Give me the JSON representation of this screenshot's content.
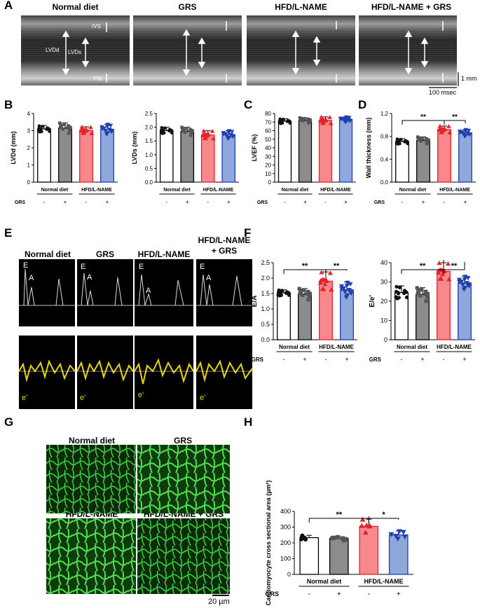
{
  "panels": {
    "A": "A",
    "B": "B",
    "C": "C",
    "D": "D",
    "E": "E",
    "F": "F",
    "G": "G",
    "H": "H"
  },
  "conditions": [
    "Normal diet",
    "GRS",
    "HFD/L-NAME",
    "HFD/L-NAME + GRS"
  ],
  "conditions_e": [
    "Normal diet",
    "GRS",
    "HFD/L-NAME",
    "HFD/L-NAME\n+ GRS"
  ],
  "mmode": {
    "ivs": "IVS",
    "lvdd": "LVDd",
    "lvds": "LVDs",
    "pw": "PW",
    "scale_v": "1 mm",
    "scale_h": "100 msec"
  },
  "doppler": {
    "e": "E",
    "a": "A",
    "eprime": "e'"
  },
  "histo": {
    "scale": "20 µm"
  },
  "groups": {
    "normal": "Normal diet",
    "hfd": "HFD/L-NAME",
    "grs_row": "GRS",
    "minus": "-",
    "plus": "+"
  },
  "colors": {
    "nd": "#ffffff",
    "grs": "#8c8c8c",
    "hfd": "#f7888c",
    "hfdgrs": "#8fa8dc",
    "hfd_marker": "#e8202a",
    "hfdgrs_marker": "#1f3fb0",
    "grs_marker": "#555555",
    "histo": "#3dcc3d",
    "tissue": "#0a2a0a",
    "doppler": "#e8d400"
  },
  "chart_data": [
    {
      "id": "lvdd",
      "type": "bar",
      "ylabel": "LVDd (mm)",
      "ylim": [
        0,
        4
      ],
      "yticks": [
        0,
        1,
        2,
        3,
        4
      ],
      "values": [
        3.1,
        3.15,
        3.02,
        3.08
      ],
      "sd": [
        0.2,
        0.3,
        0.2,
        0.3
      ]
    },
    {
      "id": "lvds",
      "type": "bar",
      "ylabel": "LVDs (mm)",
      "ylim": [
        0,
        2.5
      ],
      "yticks": [
        0.0,
        0.5,
        1.0,
        1.5,
        2.0,
        2.5
      ],
      "values": [
        1.88,
        1.85,
        1.72,
        1.73
      ],
      "sd": [
        0.12,
        0.15,
        0.15,
        0.15
      ]
    },
    {
      "id": "lvef",
      "type": "bar",
      "ylabel": "LVEF (%)",
      "ylim": [
        0,
        80
      ],
      "yticks": [
        0,
        10,
        20,
        30,
        40,
        50,
        60,
        70,
        80
      ],
      "values": [
        71,
        72,
        72,
        73
      ],
      "sd": [
        3,
        3,
        4,
        3
      ]
    },
    {
      "id": "wall",
      "type": "bar",
      "ylabel": "Wall thickness (mm)",
      "ylim": [
        0,
        1.2
      ],
      "yticks": [
        0.0,
        0.4,
        0.8,
        1.2
      ],
      "values": [
        0.71,
        0.73,
        0.92,
        0.86
      ],
      "sd": [
        0.05,
        0.06,
        0.06,
        0.06
      ],
      "sig": [
        {
          "from": 0,
          "to": 2,
          "label": "**"
        },
        {
          "from": 2,
          "to": 3,
          "label": "**"
        }
      ]
    },
    {
      "id": "ea",
      "type": "bar",
      "ylabel": "E/A",
      "ylim": [
        0,
        2.5
      ],
      "yticks": [
        0.0,
        0.5,
        1.0,
        1.5,
        2.0,
        2.5
      ],
      "values": [
        1.52,
        1.48,
        1.9,
        1.62
      ],
      "sd": [
        0.1,
        0.18,
        0.3,
        0.25
      ],
      "sig": [
        {
          "from": 0,
          "to": 2,
          "label": "**"
        },
        {
          "from": 2,
          "to": 3,
          "label": "**"
        }
      ]
    },
    {
      "id": "eep",
      "type": "bar",
      "ylabel": "E/e'",
      "ylim": [
        0,
        40
      ],
      "yticks": [
        0,
        10,
        20,
        30,
        40
      ],
      "values": [
        24.5,
        23.5,
        35.5,
        29.5
      ],
      "sd": [
        3.5,
        3.5,
        4.5,
        3.5
      ],
      "sig": [
        {
          "from": 0,
          "to": 2,
          "label": "**"
        },
        {
          "from": 2,
          "to": 3,
          "label": "**"
        }
      ]
    },
    {
      "id": "csa",
      "type": "bar",
      "ylabel": "Cardiomyocyte cross sectional area (µm²)",
      "ylim": [
        0,
        400
      ],
      "yticks": [
        0,
        100,
        200,
        300,
        400
      ],
      "values": [
        233,
        228,
        305,
        250
      ],
      "sd": [
        15,
        12,
        45,
        25
      ],
      "sig": [
        {
          "from": 0,
          "to": 2,
          "label": "**"
        },
        {
          "from": 2,
          "to": 3,
          "label": "*"
        }
      ]
    }
  ]
}
